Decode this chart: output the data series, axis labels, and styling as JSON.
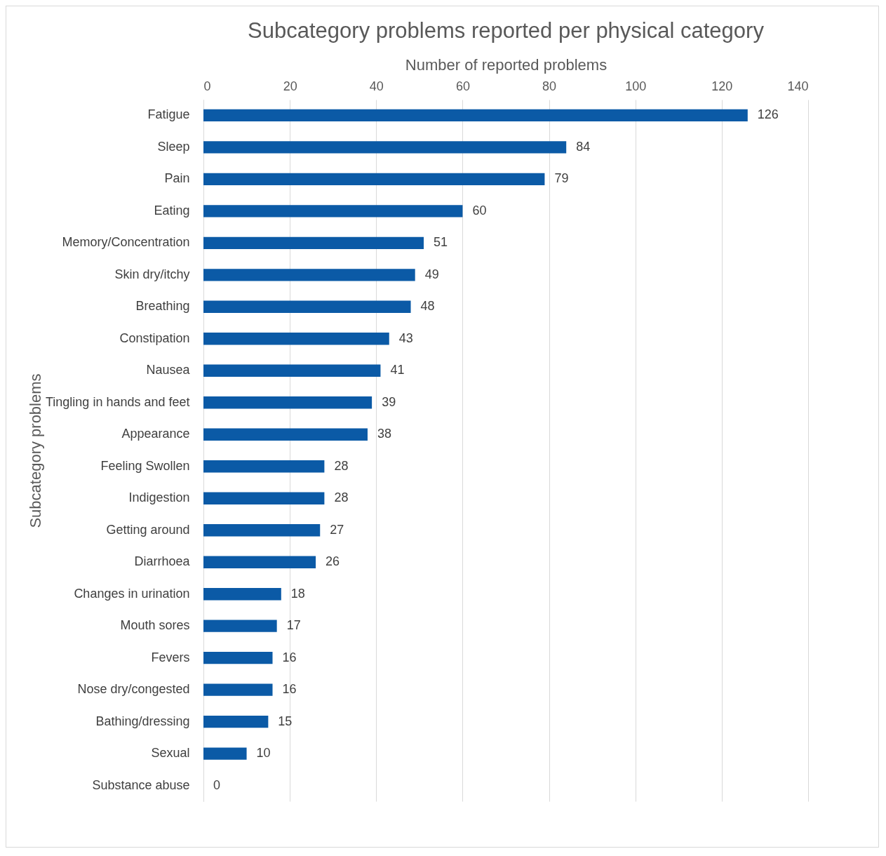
{
  "chart_data": {
    "type": "bar",
    "orientation": "horizontal",
    "title": "Subcategory problems reported per physical category",
    "xlabel": "Number of reported problems",
    "ylabel": "Subcategory problems",
    "categories": [
      "Fatigue",
      "Sleep",
      "Pain",
      "Eating",
      "Memory/Concentration",
      "Skin dry/itchy",
      "Breathing",
      "Constipation",
      "Nausea",
      "Tingling in hands and feet",
      "Appearance",
      "Feeling Swollen",
      "Indigestion",
      "Getting around",
      "Diarrhoea",
      "Changes in urination",
      "Mouth sores",
      "Fevers",
      "Nose dry/congested",
      "Bathing/dressing",
      "Sexual",
      "Substance abuse"
    ],
    "values": [
      126,
      84,
      79,
      60,
      51,
      49,
      48,
      43,
      41,
      39,
      38,
      28,
      28,
      27,
      26,
      18,
      17,
      16,
      16,
      15,
      10,
      0
    ],
    "color": "#0b5aa6",
    "xlim": [
      0,
      140
    ],
    "xticks": [
      0,
      20,
      40,
      60,
      80,
      100,
      120,
      140
    ],
    "grid": "x",
    "data_labels": true
  }
}
